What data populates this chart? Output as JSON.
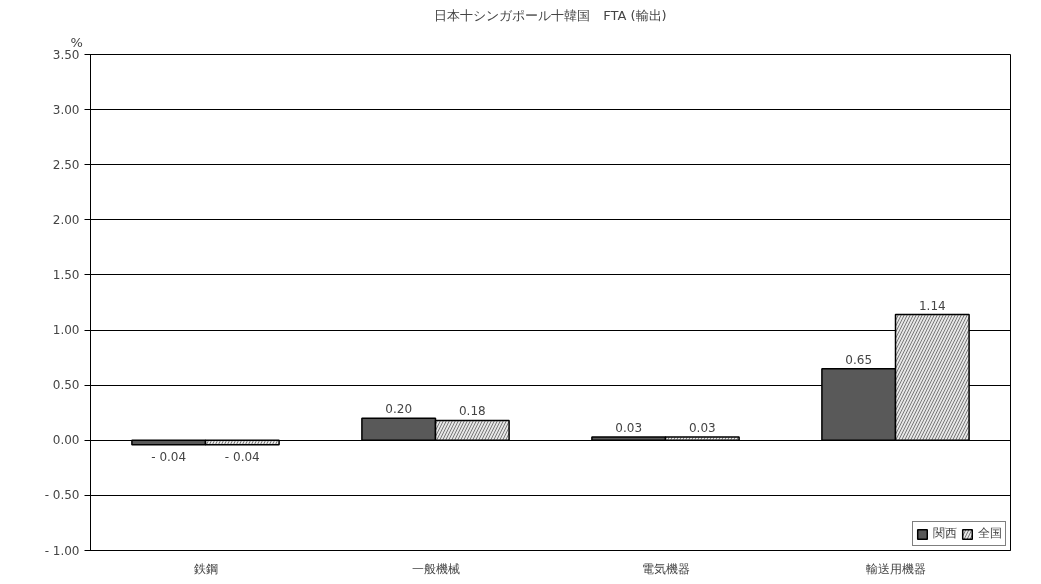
{
  "chart_data": {
    "type": "bar",
    "title": "日本十シンガポール十韓国　FTA (輸出)",
    "ylabel": "%",
    "categories": [
      "鉄鋼",
      "一般機械",
      "電気機器",
      "輸送用機器"
    ],
    "series": [
      {
        "name": "関西",
        "color": "#595959",
        "values": [
          -0.04,
          0.2,
          0.03,
          0.65
        ],
        "value_labels": [
          "- 0.04",
          "0.20",
          "0.03",
          "0.65"
        ]
      },
      {
        "name": "全国",
        "color": "#e6e6e6",
        "values": [
          -0.04,
          0.18,
          0.03,
          1.14
        ],
        "value_labels": [
          "- 0.04",
          "0.18",
          "0.03",
          "1.14"
        ]
      }
    ],
    "ylim": [
      -1.0,
      3.5
    ],
    "yticks": [
      {
        "value": -1.0,
        "label": "- 1.00"
      },
      {
        "value": -0.5,
        "label": "- 0.50"
      },
      {
        "value": 0,
        "label": "0.00"
      },
      {
        "value": 0.5,
        "label": "0.50"
      },
      {
        "value": 1.0,
        "label": "1.00"
      },
      {
        "value": 1.5,
        "label": "1.50"
      },
      {
        "value": 2.0,
        "label": "2.00"
      },
      {
        "value": 2.5,
        "label": "2.50"
      },
      {
        "value": 3.0,
        "label": "3.00"
      },
      {
        "value": 3.5,
        "label": "3.50"
      }
    ],
    "grid": "y",
    "legend": "bottom right"
  }
}
